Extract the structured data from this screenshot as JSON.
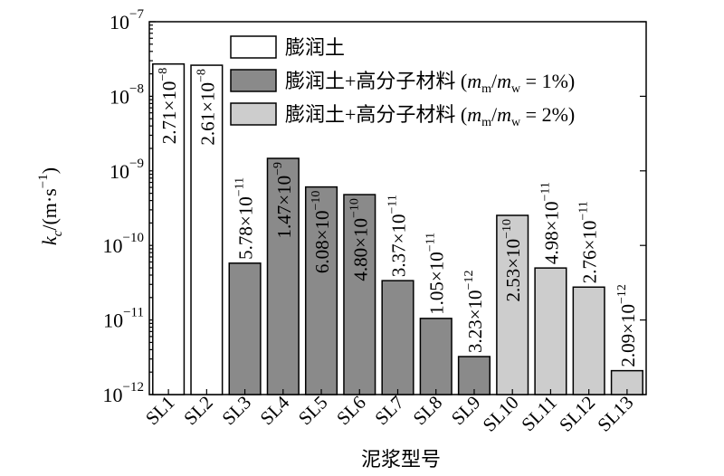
{
  "chart_data": {
    "type": "bar",
    "y_scale": "log",
    "ylim": [
      1e-12,
      1e-07
    ],
    "ylabel": "kc/(m·s−1)",
    "ylabel_parts": {
      "k": "k",
      "sub": "c",
      "unit": "/(m·s",
      "exp": "−1",
      "close": ")"
    },
    "xlabel": "泥浆型号",
    "categories": [
      "SL1",
      "SL2",
      "SL3",
      "SL4",
      "SL5",
      "SL6",
      "SL7",
      "SL8",
      "SL9",
      "SL10",
      "SL11",
      "SL12",
      "SL13"
    ],
    "values": [
      2.71e-08,
      2.61e-08,
      5.78e-11,
      1.47e-09,
      6.08e-10,
      4.8e-10,
      3.37e-11,
      1.05e-11,
      3.23e-12,
      2.53e-10,
      4.98e-11,
      2.76e-11,
      2.09e-12
    ],
    "value_labels": [
      {
        "m": "2.71×10",
        "e": "−8"
      },
      {
        "m": "2.61×10",
        "e": "−8"
      },
      {
        "m": "5.78×10",
        "e": "−11"
      },
      {
        "m": "1.47×10",
        "e": "−9"
      },
      {
        "m": "6.08×10",
        "e": "−10"
      },
      {
        "m": "4.80×10",
        "e": "−10"
      },
      {
        "m": "3.37×10",
        "e": "−11"
      },
      {
        "m": "1.05×10",
        "e": "−11"
      },
      {
        "m": "3.23×10",
        "e": "−12"
      },
      {
        "m": "2.53×10",
        "e": "−10"
      },
      {
        "m": "4.98×10",
        "e": "−11"
      },
      {
        "m": "2.76×10",
        "e": "−11"
      },
      {
        "m": "2.09×10",
        "e": "−12"
      }
    ],
    "series_index": [
      0,
      0,
      1,
      1,
      1,
      1,
      1,
      1,
      1,
      2,
      2,
      2,
      2
    ],
    "y_ticks": [
      {
        "base": "10",
        "exp": "−7",
        "value": 1e-07
      },
      {
        "base": "10",
        "exp": "−8",
        "value": 1e-08
      },
      {
        "base": "10",
        "exp": "−9",
        "value": 1e-09
      },
      {
        "base": "10",
        "exp": "−10",
        "value": 1e-10
      },
      {
        "base": "10",
        "exp": "−11",
        "value": 1e-11
      },
      {
        "base": "10",
        "exp": "−12",
        "value": 1e-12
      }
    ],
    "legend": [
      {
        "name": "膨润土",
        "color": "#ffffff"
      },
      {
        "name": "膨润土+高分子材料 (mm/mw = 1%)",
        "prefix": "膨润土+高分子材料 (",
        "m": "m",
        "msub": "m",
        "w": "m",
        "wsub": "w",
        "suffix": " = 1%)",
        "color": "#8a8a8a"
      },
      {
        "name": "膨润土+高分子材料 (mm/mw = 2%)",
        "prefix": "膨润土+高分子材料 (",
        "m": "m",
        "msub": "m",
        "w": "m",
        "wsub": "w",
        "suffix": " = 2%)",
        "color": "#cdcdcd"
      }
    ],
    "legend_position": "top-right",
    "grid": false
  }
}
